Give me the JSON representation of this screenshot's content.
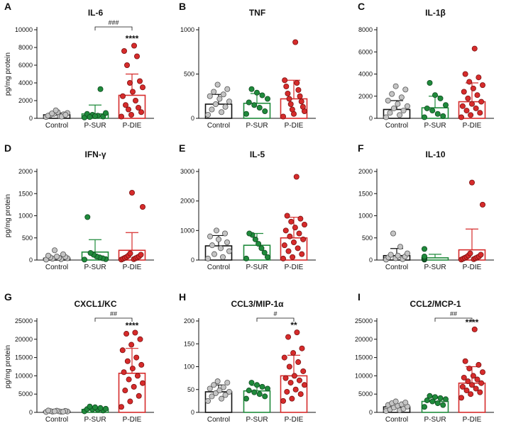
{
  "categories": [
    "Control",
    "P-SUR",
    "P-DIE"
  ],
  "y_axis_label": "pg/mg protein",
  "colors": {
    "control": "#bdbdbd",
    "psur": "#1f8a3b",
    "pdie": "#d62b2b",
    "control_bar": "#111111"
  },
  "chart_data": [
    {
      "letter": "A",
      "title": "IL-6",
      "type": "bar",
      "ylim": [
        0,
        10000
      ],
      "yticks": [
        0,
        2000,
        4000,
        6000,
        8000,
        10000
      ],
      "series": [
        {
          "name": "Control",
          "mean": 400,
          "sem": 200,
          "points": [
            150,
            250,
            350,
            450,
            500,
            600,
            700,
            300,
            200,
            550,
            400,
            900
          ]
        },
        {
          "name": "P-SUR",
          "mean": 500,
          "sem": 1000,
          "points": [
            100,
            200,
            300,
            400,
            500,
            600,
            3300,
            250,
            150
          ]
        },
        {
          "name": "P-DIE",
          "mean": 2600,
          "sem": 2400,
          "points": [
            200,
            400,
            700,
            1000,
            1200,
            1500,
            2000,
            2500,
            3000,
            3500,
            4000,
            4200,
            6000,
            7000,
            7600,
            8200
          ]
        }
      ],
      "stars": "****",
      "comparison": "###"
    },
    {
      "letter": "B",
      "title": "TNF",
      "type": "bar",
      "ylim": [
        0,
        1000
      ],
      "yticks": [
        0,
        500,
        1000
      ],
      "series": [
        {
          "name": "Control",
          "mean": 160,
          "sem": 110,
          "points": [
            40,
            70,
            100,
            130,
            160,
            190,
            220,
            250,
            270,
            300,
            330,
            380
          ]
        },
        {
          "name": "P-SUR",
          "mean": 170,
          "sem": 110,
          "points": [
            50,
            80,
            120,
            150,
            180,
            220,
            260,
            290,
            330
          ]
        },
        {
          "name": "P-DIE",
          "mean": 220,
          "sem": 210,
          "points": [
            20,
            50,
            80,
            100,
            130,
            160,
            190,
            220,
            250,
            280,
            320,
            360,
            400,
            430,
            860
          ]
        }
      ],
      "stars": "",
      "comparison": ""
    },
    {
      "letter": "C",
      "title": "IL-1β",
      "type": "bar",
      "ylim": [
        0,
        8000
      ],
      "yticks": [
        0,
        2000,
        4000,
        6000,
        8000
      ],
      "series": [
        {
          "name": "Control",
          "mean": 800,
          "sem": 800,
          "points": [
            100,
            300,
            500,
            700,
            900,
            1100,
            1300,
            1600,
            1900,
            2200,
            2600,
            2900
          ]
        },
        {
          "name": "P-SUR",
          "mean": 950,
          "sem": 1050,
          "points": [
            100,
            200,
            400,
            700,
            900,
            1200,
            1800,
            2100,
            3200
          ]
        },
        {
          "name": "P-DIE",
          "mean": 1500,
          "sem": 1700,
          "points": [
            100,
            300,
            500,
            700,
            900,
            1100,
            1300,
            1500,
            1800,
            2100,
            2400,
            2700,
            3000,
            3300,
            3700,
            4000,
            6300
          ]
        }
      ],
      "stars": "",
      "comparison": ""
    },
    {
      "letter": "D",
      "title": "IFN-γ",
      "type": "bar",
      "ylim": [
        0,
        2000
      ],
      "yticks": [
        0,
        500,
        1000,
        1500,
        2000
      ],
      "series": [
        {
          "name": "Control",
          "mean": 40,
          "sem": 40,
          "points": [
            10,
            20,
            30,
            40,
            50,
            60,
            70,
            80,
            100,
            130,
            220
          ]
        },
        {
          "name": "P-SUR",
          "mean": 180,
          "sem": 280,
          "points": [
            10,
            20,
            40,
            60,
            80,
            120,
            160,
            970
          ]
        },
        {
          "name": "P-DIE",
          "mean": 220,
          "sem": 400,
          "points": [
            10,
            20,
            30,
            40,
            50,
            60,
            70,
            80,
            100,
            120,
            150,
            1200,
            1520
          ]
        }
      ],
      "stars": "",
      "comparison": ""
    },
    {
      "letter": "E",
      "title": "IL-5",
      "type": "bar",
      "ylim": [
        0,
        3000
      ],
      "yticks": [
        0,
        1000,
        2000,
        3000
      ],
      "series": [
        {
          "name": "Control",
          "mean": 480,
          "sem": 350,
          "points": [
            50,
            100,
            200,
            300,
            400,
            500,
            600,
            700,
            800,
            900,
            1000
          ]
        },
        {
          "name": "P-SUR",
          "mean": 500,
          "sem": 400,
          "points": [
            50,
            100,
            250,
            400,
            550,
            700,
            850,
            900
          ]
        },
        {
          "name": "P-DIE",
          "mean": 750,
          "sem": 700,
          "points": [
            50,
            100,
            200,
            300,
            400,
            500,
            600,
            700,
            800,
            900,
            1000,
            1100,
            1200,
            1300,
            1400,
            1500,
            2820
          ]
        }
      ],
      "stars": "",
      "comparison": ""
    },
    {
      "letter": "F",
      "title": "IL-10",
      "type": "bar",
      "ylim": [
        0,
        2000
      ],
      "yticks": [
        0,
        500,
        1000,
        1500,
        2000
      ],
      "series": [
        {
          "name": "Control",
          "mean": 100,
          "sem": 160,
          "points": [
            10,
            20,
            40,
            60,
            80,
            100,
            120,
            150,
            300,
            600
          ]
        },
        {
          "name": "P-SUR",
          "mean": 50,
          "sem": 80,
          "points": [
            10,
            20,
            30,
            40,
            60,
            80,
            250
          ]
        },
        {
          "name": "P-DIE",
          "mean": 230,
          "sem": 470,
          "points": [
            10,
            20,
            30,
            40,
            50,
            60,
            70,
            80,
            100,
            120,
            150,
            1250,
            1750
          ]
        }
      ],
      "stars": "",
      "comparison": ""
    },
    {
      "letter": "G",
      "title": "CXCL1/KC",
      "type": "bar",
      "ylim": [
        0,
        25000
      ],
      "yticks": [
        0,
        5000,
        10000,
        15000,
        20000,
        25000
      ],
      "series": [
        {
          "name": "Control",
          "mean": 300,
          "sem": 150,
          "points": [
            100,
            150,
            200,
            250,
            300,
            350,
            400,
            450,
            500,
            200,
            300
          ]
        },
        {
          "name": "P-SUR",
          "mean": 800,
          "sem": 400,
          "points": [
            300,
            500,
            700,
            800,
            900,
            1000,
            1200,
            1400,
            1600
          ]
        },
        {
          "name": "P-DIE",
          "mean": 10700,
          "sem": 6800,
          "points": [
            1500,
            3000,
            4500,
            6000,
            7000,
            8000,
            9000,
            10000,
            11000,
            12000,
            13000,
            14000,
            15000,
            17000,
            18500,
            20000,
            21500,
            21800
          ]
        }
      ],
      "stars": "****",
      "comparison": "##"
    },
    {
      "letter": "H",
      "title": "CCL3/MIP-1α",
      "type": "bar",
      "ylim": [
        0,
        200
      ],
      "yticks": [
        0,
        50,
        100,
        150,
        200
      ],
      "series": [
        {
          "name": "Control",
          "mean": 45,
          "sem": 15,
          "points": [
            25,
            30,
            35,
            38,
            42,
            45,
            48,
            52,
            55,
            60,
            65,
            68
          ]
        },
        {
          "name": "P-SUR",
          "mean": 47,
          "sem": 12,
          "points": [
            30,
            35,
            40,
            44,
            48,
            52,
            56,
            60,
            65
          ]
        },
        {
          "name": "P-DIE",
          "mean": 80,
          "sem": 45,
          "points": [
            25,
            30,
            40,
            45,
            50,
            60,
            65,
            70,
            75,
            80,
            90,
            100,
            110,
            120,
            130,
            140,
            165,
            175
          ]
        }
      ],
      "stars": "**",
      "comparison": "#"
    },
    {
      "letter": "I",
      "title": "CCL2/MCP-1",
      "type": "bar",
      "ylim": [
        0,
        25000
      ],
      "yticks": [
        0,
        5000,
        10000,
        15000,
        20000,
        25000
      ],
      "series": [
        {
          "name": "Control",
          "mean": 1500,
          "sem": 900,
          "points": [
            400,
            600,
            800,
            1000,
            1300,
            1600,
            1800,
            2000,
            2200,
            2500,
            2700,
            3000
          ]
        },
        {
          "name": "P-SUR",
          "mean": 3000,
          "sem": 1100,
          "points": [
            1500,
            2000,
            2500,
            3000,
            3300,
            3600,
            3900,
            4200,
            4500
          ]
        },
        {
          "name": "P-DIE",
          "mean": 8000,
          "sem": 4500,
          "points": [
            4000,
            5000,
            5500,
            6000,
            6500,
            7000,
            7500,
            8000,
            8500,
            9000,
            9500,
            10000,
            11000,
            12000,
            13000,
            14000,
            22700
          ]
        }
      ],
      "stars": "****",
      "comparison": "##"
    }
  ]
}
